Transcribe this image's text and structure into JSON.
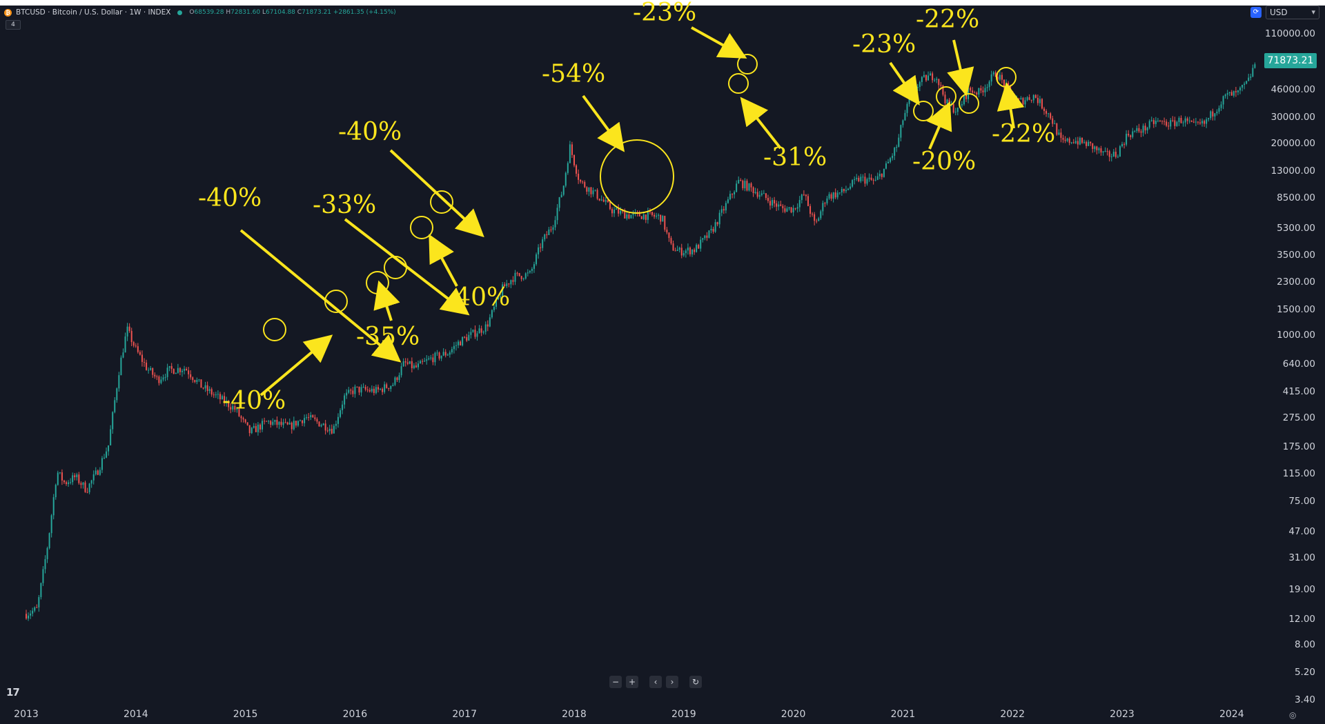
{
  "header": {
    "symbol_title": "BTCUSD · Bitcoin / U.S. Dollar · 1W · INDEX",
    "ohlc": {
      "open_label": "O",
      "open": "68539.28",
      "high_label": "H",
      "high": "72831.60",
      "low_label": "L",
      "low": "67104.88",
      "close_label": "C",
      "close": "71873.21",
      "change": "+2861.35 (+4.15%)"
    },
    "indicator_count": "4",
    "currency": "USD"
  },
  "colors": {
    "background": "#141823",
    "up": "#26a69a",
    "down": "#ef5350",
    "annotation": "#fbe51d"
  },
  "last_price_label": "71873.21",
  "price_axis": [
    "110000.00",
    "46000.00",
    "30000.00",
    "20000.00",
    "13000.00",
    "8500.00",
    "5300.00",
    "3500.00",
    "2300.00",
    "1500.00",
    "1000.00",
    "640.00",
    "415.00",
    "275.00",
    "175.00",
    "115.00",
    "75.00",
    "47.00",
    "31.00",
    "19.00",
    "12.00",
    "8.00",
    "5.20",
    "3.40"
  ],
  "time_axis": [
    "2013",
    "2014",
    "2015",
    "2016",
    "2017",
    "2018",
    "2019",
    "2020",
    "2021",
    "2022",
    "2023",
    "2024"
  ],
  "navigation": [
    "−",
    "+",
    "‹",
    "›",
    "↻"
  ],
  "chart_data": {
    "type": "line",
    "title": "BTCUSD · Bitcoin / U.S. Dollar · 1W · INDEX",
    "y_scale": "log",
    "ylim": [
      3.4,
      110000
    ],
    "xlim": [
      2013.0,
      2024.3
    ],
    "grid": false,
    "series": [
      {
        "x": [
          2013.0,
          2013.1,
          2013.2,
          2013.28,
          2013.35,
          2013.45,
          2013.55,
          2013.65,
          2013.75,
          2013.85,
          2013.92,
          2014.0,
          2014.1,
          2014.2,
          2014.3,
          2014.45,
          2014.6,
          2014.75,
          2014.9,
          2015.04,
          2015.2,
          2015.4,
          2015.55,
          2015.7,
          2015.8,
          2015.9,
          2016.0,
          2016.2,
          2016.35,
          2016.45,
          2016.55,
          2016.7,
          2016.85,
          2016.95,
          2017.05,
          2017.2,
          2017.35,
          2017.45,
          2017.6,
          2017.7,
          2017.8,
          2017.9,
          2017.96,
          2018.05,
          2018.2,
          2018.35,
          2018.5,
          2018.65,
          2018.8,
          2018.88,
          2018.96,
          2019.1,
          2019.25,
          2019.4,
          2019.5,
          2019.6,
          2019.7,
          2019.8,
          2019.9,
          2020.0,
          2020.1,
          2020.2,
          2020.3,
          2020.45,
          2020.6,
          2020.75,
          2020.85,
          2020.95,
          2021.0,
          2021.1,
          2021.2,
          2021.3,
          2021.4,
          2021.5,
          2021.6,
          2021.7,
          2021.85,
          2021.95,
          2022.05,
          2022.2,
          2022.35,
          2022.45,
          2022.55,
          2022.7,
          2022.85,
          2022.95,
          2023.05,
          2023.2,
          2023.3,
          2023.45,
          2023.55,
          2023.65,
          2023.75,
          2023.85,
          2023.95,
          2024.05,
          2024.15,
          2024.22
        ],
        "y": [
          13,
          14,
          40,
          120,
          100,
          110,
          90,
          120,
          180,
          600,
          1100,
          800,
          600,
          500,
          580,
          600,
          450,
          380,
          320,
          220,
          260,
          240,
          280,
          250,
          230,
          380,
          430,
          420,
          470,
          650,
          600,
          700,
          760,
          900,
          1000,
          1150,
          2100,
          2500,
          2600,
          4200,
          5500,
          10000,
          19000,
          11000,
          9000,
          7000,
          6500,
          6500,
          6300,
          4000,
          3700,
          3800,
          5000,
          8000,
          11000,
          10000,
          9000,
          8000,
          7200,
          7200,
          9000,
          5500,
          8700,
          9300,
          11500,
          11000,
          14000,
          19500,
          29000,
          47000,
          55000,
          58000,
          37000,
          33000,
          46000,
          44000,
          60000,
          47000,
          38000,
          42000,
          30000,
          20000,
          21000,
          19500,
          16500,
          16800,
          23000,
          25000,
          28000,
          27000,
          29000,
          26000,
          27000,
          34000,
          42000,
          43000,
          52000,
          71873
        ]
      }
    ],
    "annotations": [
      {
        "label": "-40%",
        "x": 2015.83,
        "y": 320
      },
      {
        "label": "-40%",
        "x": 2016.5,
        "y": 580
      },
      {
        "label": "-33%",
        "x": 2017.18,
        "y": 1130
      },
      {
        "label": "-35%",
        "x": 2017.0,
        "y": 820
      },
      {
        "label": "-40%",
        "x": 2017.7,
        "y": 4200
      },
      {
        "label": "-40%",
        "x": 2017.49,
        "y": 2550
      },
      {
        "label": "-54%",
        "x": 2019.85,
        "y": 7800
      },
      {
        "label": "-23%",
        "x": 2021.12,
        "y": 55000
      },
      {
        "label": "-31%",
        "x": 2021.02,
        "y": 37000
      },
      {
        "label": "-23%",
        "x": 2023.09,
        "y": 22500
      },
      {
        "label": "-20%",
        "x": 2023.34,
        "y": 27500
      },
      {
        "label": "-22%",
        "x": 2023.61,
        "y": 25500
      },
      {
        "label": "-22%",
        "x": 2024.01,
        "y": 43000
      }
    ]
  }
}
